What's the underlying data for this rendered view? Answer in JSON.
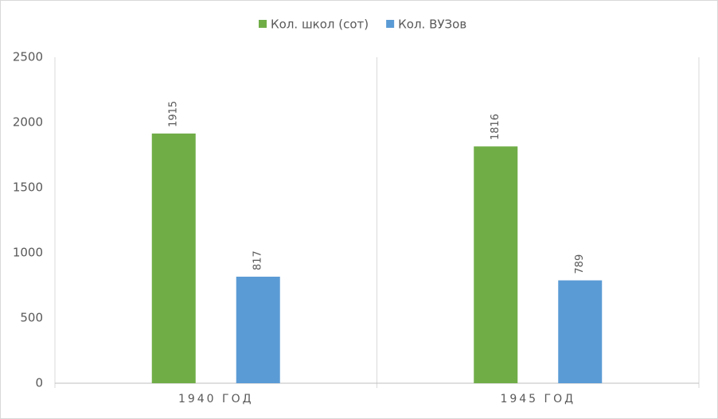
{
  "chart_data": {
    "type": "bar",
    "categories": [
      "1940 ГОД",
      "1945 ГОД"
    ],
    "series": [
      {
        "name": "Кол. школ (сот)",
        "color": "#70ad47",
        "values": [
          1915,
          1816
        ]
      },
      {
        "name": "Кол. ВУЗов",
        "color": "#5b9bd5",
        "values": [
          817,
          789
        ]
      }
    ],
    "ylim": [
      0,
      2500
    ],
    "yticks": [
      0,
      500,
      1000,
      1500,
      2000,
      2500
    ],
    "legend": "top",
    "category_grid": true
  }
}
